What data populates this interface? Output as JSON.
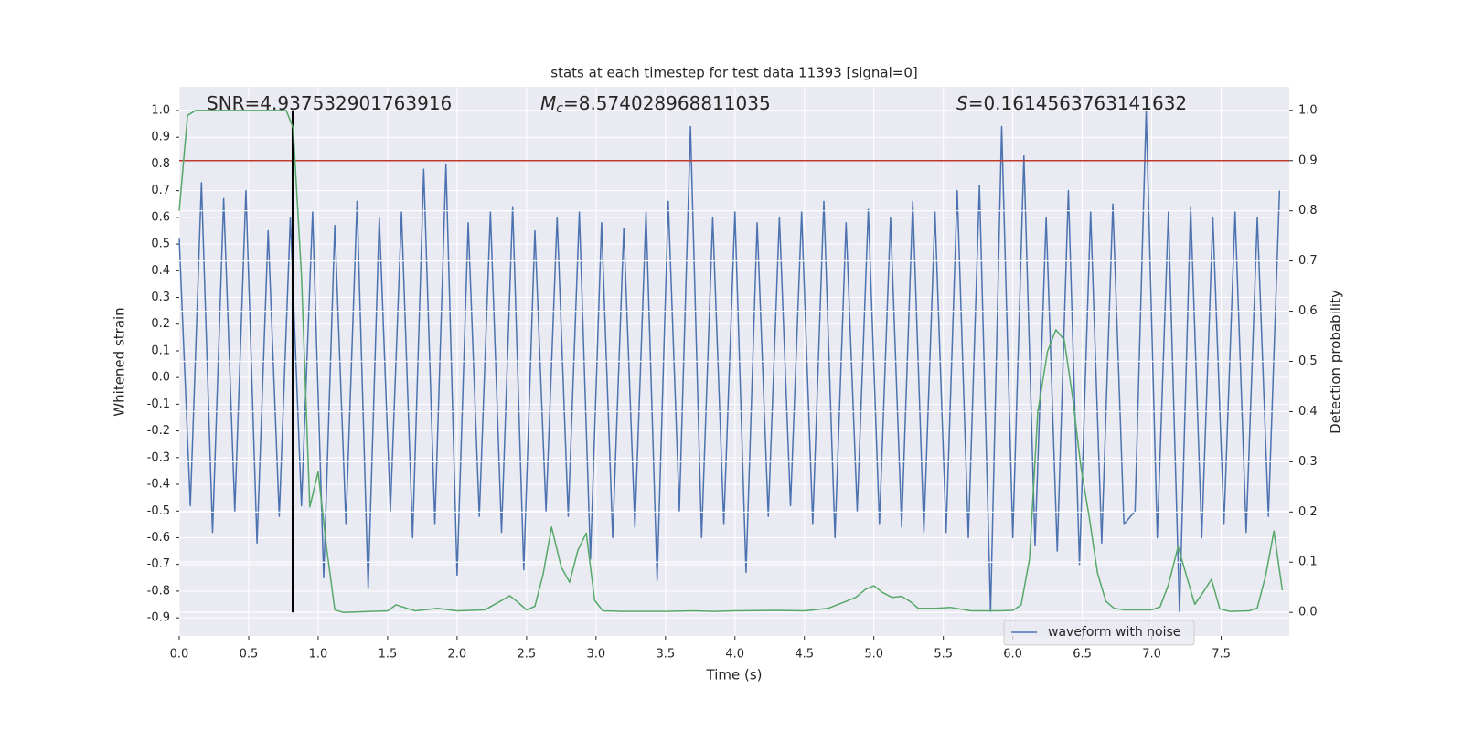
{
  "chart_data": {
    "type": "line",
    "title": "stats at each timestep for test data 11393 [signal=0]",
    "xlabel": "Time (s)",
    "ylabel": "Whitened strain",
    "y2label": "Detection probability",
    "xlim": [
      0,
      7.99
    ],
    "ylim": [
      -0.968,
      1.089
    ],
    "y2lim": [
      -0.047,
      1.047
    ],
    "xticks": [
      {
        "value": 0,
        "label": "0.0"
      },
      0.5,
      {
        "value": 1,
        "label": "1.0"
      },
      1.5,
      {
        "value": 2,
        "label": "2.0"
      },
      2.5,
      {
        "value": 3,
        "label": "3.0"
      },
      3.5,
      {
        "value": 4,
        "label": "4.0"
      },
      4.5,
      {
        "value": 5,
        "label": "5.0"
      },
      5.5,
      {
        "value": 6,
        "label": "6.0"
      },
      6.5,
      {
        "value": 7,
        "label": "7.0"
      },
      7.5
    ],
    "yticks": [
      -0.9,
      -0.8,
      -0.7,
      -0.6,
      -0.5,
      -0.4,
      -0.3,
      -0.2,
      -0.1,
      {
        "value": 0,
        "label": "0.0"
      },
      0.1,
      0.2,
      0.3,
      0.4,
      0.5,
      0.6,
      0.7,
      0.8,
      0.9,
      {
        "value": 1,
        "label": "1.0"
      }
    ],
    "y2ticks": [
      {
        "value": 0,
        "label": "0.0"
      },
      0.1,
      0.2,
      0.3,
      0.4,
      0.5,
      0.6,
      0.7,
      0.8,
      0.9,
      {
        "value": 1,
        "label": "1.0"
      }
    ],
    "grid": true,
    "legend": "lower right",
    "annotations": [
      {
        "text": "SNR=4.937532901763916"
      },
      {
        "symbol": "M",
        "sub": "c",
        "text": "=8.574028968811035"
      },
      {
        "symbol": "S",
        "text": "=0.1614563763141632"
      }
    ],
    "hline": {
      "y": 0.9,
      "axis": "y2",
      "color": "#c0392b"
    },
    "vline": {
      "x": 0.816,
      "ymin": 0,
      "ymax": 1,
      "axis": "y2",
      "color": "#000000"
    },
    "series": [
      {
        "name": "waveform with noise",
        "color": "#4c72b0",
        "x": [
          0,
          0.08,
          0.16,
          0.24,
          0.32,
          0.4,
          0.48,
          0.56,
          0.64,
          0.72,
          0.8,
          0.88,
          0.96,
          1.04,
          1.12,
          1.2,
          1.28,
          1.36,
          1.44,
          1.52,
          1.6,
          1.68,
          1.76,
          1.84,
          1.92,
          2,
          2.08,
          2.16,
          2.24,
          2.32,
          2.4,
          2.48,
          2.56,
          2.64,
          2.72,
          2.8,
          2.88,
          2.96,
          3.04,
          3.12,
          3.2,
          3.28,
          3.36,
          3.44,
          3.52,
          3.6,
          3.68,
          3.76,
          3.84,
          3.92,
          4,
          4.08,
          4.16,
          4.24,
          4.32,
          4.4,
          4.48,
          4.56,
          4.64,
          4.72,
          4.8,
          4.88,
          4.96,
          5.04,
          5.12,
          5.2,
          5.28,
          5.36,
          5.44,
          5.52,
          5.6,
          5.68,
          5.76,
          5.84,
          5.92,
          6,
          6.08,
          6.16,
          6.24,
          6.32,
          6.4,
          6.48,
          6.56,
          6.64,
          6.72,
          6.8,
          6.88,
          6.96,
          7.04,
          7.12,
          7.2,
          7.28,
          7.36,
          7.44,
          7.52,
          7.6,
          7.68,
          7.76,
          7.84,
          7.92
        ],
        "values": [
          0.52,
          -0.48,
          0.73,
          -0.58,
          0.67,
          -0.5,
          0.7,
          -0.62,
          0.55,
          -0.52,
          0.6,
          -0.48,
          0.62,
          -0.75,
          0.57,
          -0.55,
          0.66,
          -0.79,
          0.6,
          -0.5,
          0.62,
          -0.6,
          0.78,
          -0.55,
          0.8,
          -0.74,
          0.58,
          -0.52,
          0.62,
          -0.58,
          0.64,
          -0.72,
          0.55,
          -0.5,
          0.6,
          -0.52,
          0.62,
          -0.68,
          0.58,
          -0.6,
          0.56,
          -0.56,
          0.62,
          -0.76,
          0.66,
          -0.5,
          0.94,
          -0.6,
          0.6,
          -0.55,
          0.62,
          -0.73,
          0.58,
          -0.52,
          0.6,
          -0.48,
          0.62,
          -0.55,
          0.66,
          -0.6,
          0.58,
          -0.5,
          0.63,
          -0.55,
          0.6,
          -0.56,
          0.66,
          -0.58,
          0.62,
          -0.58,
          0.7,
          -0.6,
          0.72,
          -0.88,
          0.94,
          -0.6,
          0.83,
          -0.63,
          0.6,
          -0.65,
          0.7,
          -0.7,
          0.62,
          -0.62,
          0.65,
          -0.55,
          -0.5,
          1.0,
          -0.6,
          0.62,
          -0.88,
          0.64,
          -0.6,
          0.6,
          -0.55,
          0.62,
          -0.58,
          0.6,
          -0.52,
          0.7
        ]
      },
      {
        "color": "#55a868",
        "axis": "y2",
        "x": [
          0,
          0.06,
          0.12,
          0.7,
          0.77,
          0.82,
          0.88,
          0.94,
          1.0,
          1.06,
          1.12,
          1.18,
          1.5,
          1.56,
          1.7,
          1.86,
          2.0,
          2.2,
          2.38,
          2.43,
          2.5,
          2.56,
          2.62,
          2.68,
          2.75,
          2.81,
          2.87,
          2.93,
          2.99,
          3.05,
          3.2,
          3.5,
          3.7,
          3.85,
          4.0,
          4.3,
          4.5,
          4.67,
          4.8,
          4.87,
          4.94,
          5.0,
          5.06,
          5.13,
          5.2,
          5.26,
          5.32,
          5.45,
          5.55,
          5.7,
          5.9,
          6.0,
          6.06,
          6.12,
          6.18,
          6.25,
          6.31,
          6.37,
          6.43,
          6.49,
          6.55,
          6.61,
          6.67,
          6.73,
          6.8,
          7.0,
          7.06,
          7.12,
          7.19,
          7.25,
          7.31,
          7.37,
          7.43,
          7.49,
          7.56,
          7.7,
          7.76,
          7.82,
          7.88,
          7.94
        ],
        "values": [
          0.8,
          0.99,
          1.0,
          1.0,
          1.0,
          0.965,
          0.67,
          0.21,
          0.28,
          0.13,
          0.005,
          0.0,
          0.003,
          0.015,
          0.003,
          0.008,
          0.003,
          0.005,
          0.033,
          0.022,
          0.005,
          0.012,
          0.077,
          0.17,
          0.09,
          0.06,
          0.124,
          0.158,
          0.024,
          0.003,
          0.002,
          0.002,
          0.003,
          0.002,
          0.003,
          0.004,
          0.003,
          0.008,
          0.022,
          0.03,
          0.046,
          0.053,
          0.04,
          0.03,
          0.032,
          0.022,
          0.008,
          0.008,
          0.01,
          0.003,
          0.003,
          0.004,
          0.015,
          0.106,
          0.4,
          0.52,
          0.563,
          0.543,
          0.43,
          0.29,
          0.19,
          0.078,
          0.022,
          0.008,
          0.005,
          0.005,
          0.011,
          0.055,
          0.131,
          0.073,
          0.016,
          0.04,
          0.066,
          0.007,
          0.002,
          0.003,
          0.009,
          0.073,
          0.162,
          0.044
        ]
      }
    ]
  }
}
